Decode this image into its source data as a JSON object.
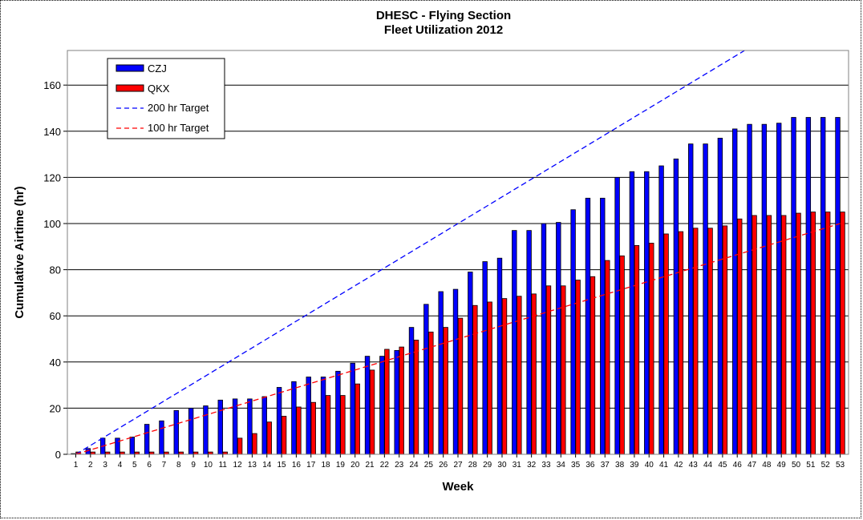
{
  "chart_data": {
    "type": "bar",
    "title": "DHESC - Flying Section",
    "subtitle": "Fleet Utilization 2012",
    "xlabel": "Week",
    "ylabel": "Cumulative Airtime (hr)",
    "ylim": [
      0,
      175
    ],
    "yticks": [
      0,
      20,
      40,
      60,
      80,
      100,
      120,
      140,
      160
    ],
    "grid": true,
    "legend_position": "top-left",
    "categories": [
      "1",
      "2",
      "3",
      "4",
      "5",
      "6",
      "7",
      "8",
      "9",
      "10",
      "11",
      "12",
      "13",
      "14",
      "15",
      "16",
      "17",
      "18",
      "19",
      "20",
      "21",
      "22",
      "23",
      "24",
      "25",
      "26",
      "27",
      "28",
      "29",
      "30",
      "31",
      "32",
      "33",
      "34",
      "35",
      "36",
      "37",
      "38",
      "39",
      "40",
      "41",
      "42",
      "43",
      "44",
      "45",
      "46",
      "47",
      "48",
      "49",
      "50",
      "51",
      "52",
      "53"
    ],
    "series": [
      {
        "name": "CZJ",
        "color": "#0000ff",
        "values": [
          0.3,
          2.5,
          7,
          7,
          7.5,
          13,
          14.5,
          19,
          20,
          21,
          23.5,
          24,
          24,
          25,
          29,
          31.5,
          33.5,
          33.5,
          36,
          39.5,
          42.5,
          42.5,
          45,
          55,
          65,
          70.5,
          71.5,
          79,
          83.5,
          85,
          97,
          97,
          100,
          100.5,
          106,
          111,
          111,
          120,
          122.5,
          122.5,
          125,
          128,
          134.5,
          134.5,
          137,
          141,
          143,
          143,
          143.5,
          146,
          146,
          146,
          146
        ]
      },
      {
        "name": "QKX",
        "color": "#ff0000",
        "values": [
          1,
          1,
          1,
          1,
          1,
          1,
          1,
          1,
          1,
          1,
          1,
          7,
          9,
          14,
          16.5,
          20.5,
          22.5,
          25.5,
          25.5,
          30.5,
          36.5,
          45.5,
          46.5,
          49.5,
          53,
          55,
          59,
          64.5,
          66,
          67.5,
          68.5,
          69.5,
          73,
          73,
          75.5,
          77,
          84,
          86,
          90.5,
          91.5,
          95.5,
          96.5,
          98,
          98,
          99,
          102,
          103.5,
          103.5,
          103.5,
          104.5,
          105,
          105,
          105
        ]
      }
    ],
    "targets": [
      {
        "name": "200 hr Target",
        "color": "#0000ff",
        "start": 0,
        "end": 200
      },
      {
        "name": "100 hr Target",
        "color": "#ff0000",
        "start": 0,
        "end": 100
      }
    ]
  }
}
